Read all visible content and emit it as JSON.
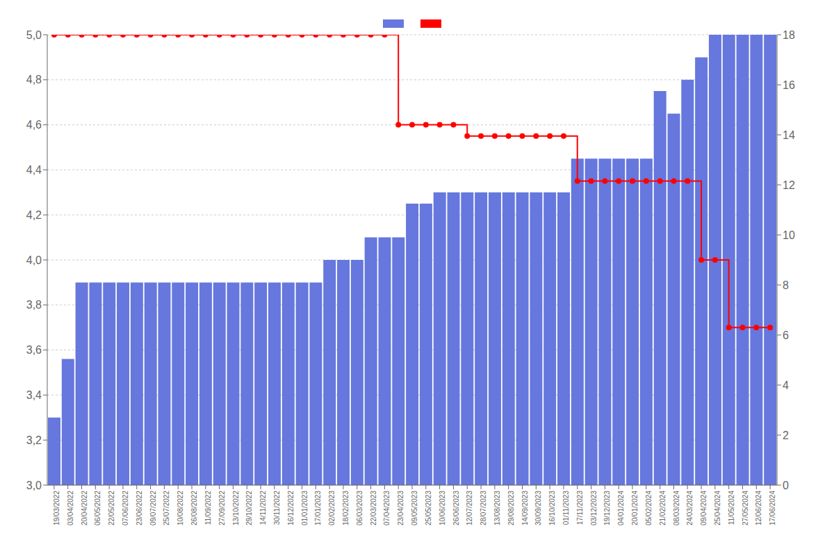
{
  "chart_data": {
    "type": "bar",
    "categories": [
      "19/03/2022",
      "03/04/2022",
      "20/04/2022",
      "06/05/2022",
      "22/05/2022",
      "07/06/2022",
      "23/06/2022",
      "09/07/2022",
      "25/07/2022",
      "10/08/2022",
      "26/08/2022",
      "11/09/2022",
      "27/09/2022",
      "13/10/2022",
      "29/10/2022",
      "14/11/2022",
      "30/11/2022",
      "16/12/2022",
      "01/01/2023",
      "17/01/2023",
      "02/02/2023",
      "18/02/2023",
      "06/03/2023",
      "22/03/2023",
      "07/04/2023",
      "23/04/2023",
      "09/05/2023",
      "25/05/2023",
      "10/06/2023",
      "26/06/2023",
      "12/07/2023",
      "28/07/2023",
      "13/08/2023",
      "29/08/2023",
      "14/09/2023",
      "30/09/2023",
      "16/10/2023",
      "01/11/2023",
      "17/11/2023",
      "03/12/2023",
      "19/12/2023",
      "04/01/2024",
      "20/01/2024",
      "05/02/2024",
      "21/02/2024",
      "08/03/2024",
      "24/03/2024",
      "09/04/2024",
      "25/04/2024",
      "11/05/2024",
      "27/05/2024",
      "12/06/2024",
      "17/06/2024"
    ],
    "series": [
      {
        "type": "bar",
        "color": "#6677dd",
        "values": [
          3.3,
          3.56,
          3.9,
          3.9,
          3.9,
          3.9,
          3.9,
          3.9,
          3.9,
          3.9,
          3.9,
          3.9,
          3.9,
          3.9,
          3.9,
          3.9,
          3.9,
          3.9,
          3.9,
          3.9,
          4.0,
          4.0,
          4.0,
          4.1,
          4.1,
          4.1,
          4.25,
          4.25,
          4.3,
          4.3,
          4.3,
          4.3,
          4.3,
          4.3,
          4.3,
          4.3,
          4.3,
          4.3,
          4.45,
          4.45,
          4.45,
          4.45,
          4.45,
          4.45,
          4.75,
          4.65,
          4.8,
          4.9,
          5.0,
          5.0,
          5.0,
          5.0,
          5.0
        ]
      },
      {
        "type": "line",
        "color": "#ff0000",
        "line_style": "step",
        "marker": "circle",
        "values": [
          5.0,
          5.0,
          5.0,
          5.0,
          5.0,
          5.0,
          5.0,
          5.0,
          5.0,
          5.0,
          5.0,
          5.0,
          5.0,
          5.0,
          5.0,
          5.0,
          5.0,
          5.0,
          5.0,
          5.0,
          5.0,
          5.0,
          5.0,
          5.0,
          5.0,
          4.6,
          4.6,
          4.6,
          4.6,
          4.6,
          4.55,
          4.55,
          4.55,
          4.55,
          4.55,
          4.55,
          4.55,
          4.55,
          4.35,
          4.35,
          4.35,
          4.35,
          4.35,
          4.35,
          4.35,
          4.35,
          4.35,
          4.0,
          4.0,
          3.7,
          3.7,
          3.7,
          3.7
        ]
      }
    ],
    "ylim": [
      3.0,
      5.0
    ],
    "yticks": [
      {
        "value": 3.0,
        "label": "3,0"
      },
      {
        "value": 3.2,
        "label": "3,2"
      },
      {
        "value": 3.4,
        "label": "3,4"
      },
      {
        "value": 3.6,
        "label": "3,6"
      },
      {
        "value": 3.8,
        "label": "3,8"
      },
      {
        "value": 4.0,
        "label": "4,0"
      },
      {
        "value": 4.2,
        "label": "4,2"
      },
      {
        "value": 4.4,
        "label": "4,4"
      },
      {
        "value": 4.6,
        "label": "4,6"
      },
      {
        "value": 4.8,
        "label": "4,8"
      },
      {
        "value": 5.0,
        "label": "5,0"
      }
    ],
    "y2lim": [
      0,
      18
    ],
    "y2ticks": [
      0,
      2,
      4,
      6,
      8,
      10,
      12,
      14,
      16,
      18
    ],
    "grid": true,
    "legend": "top"
  }
}
